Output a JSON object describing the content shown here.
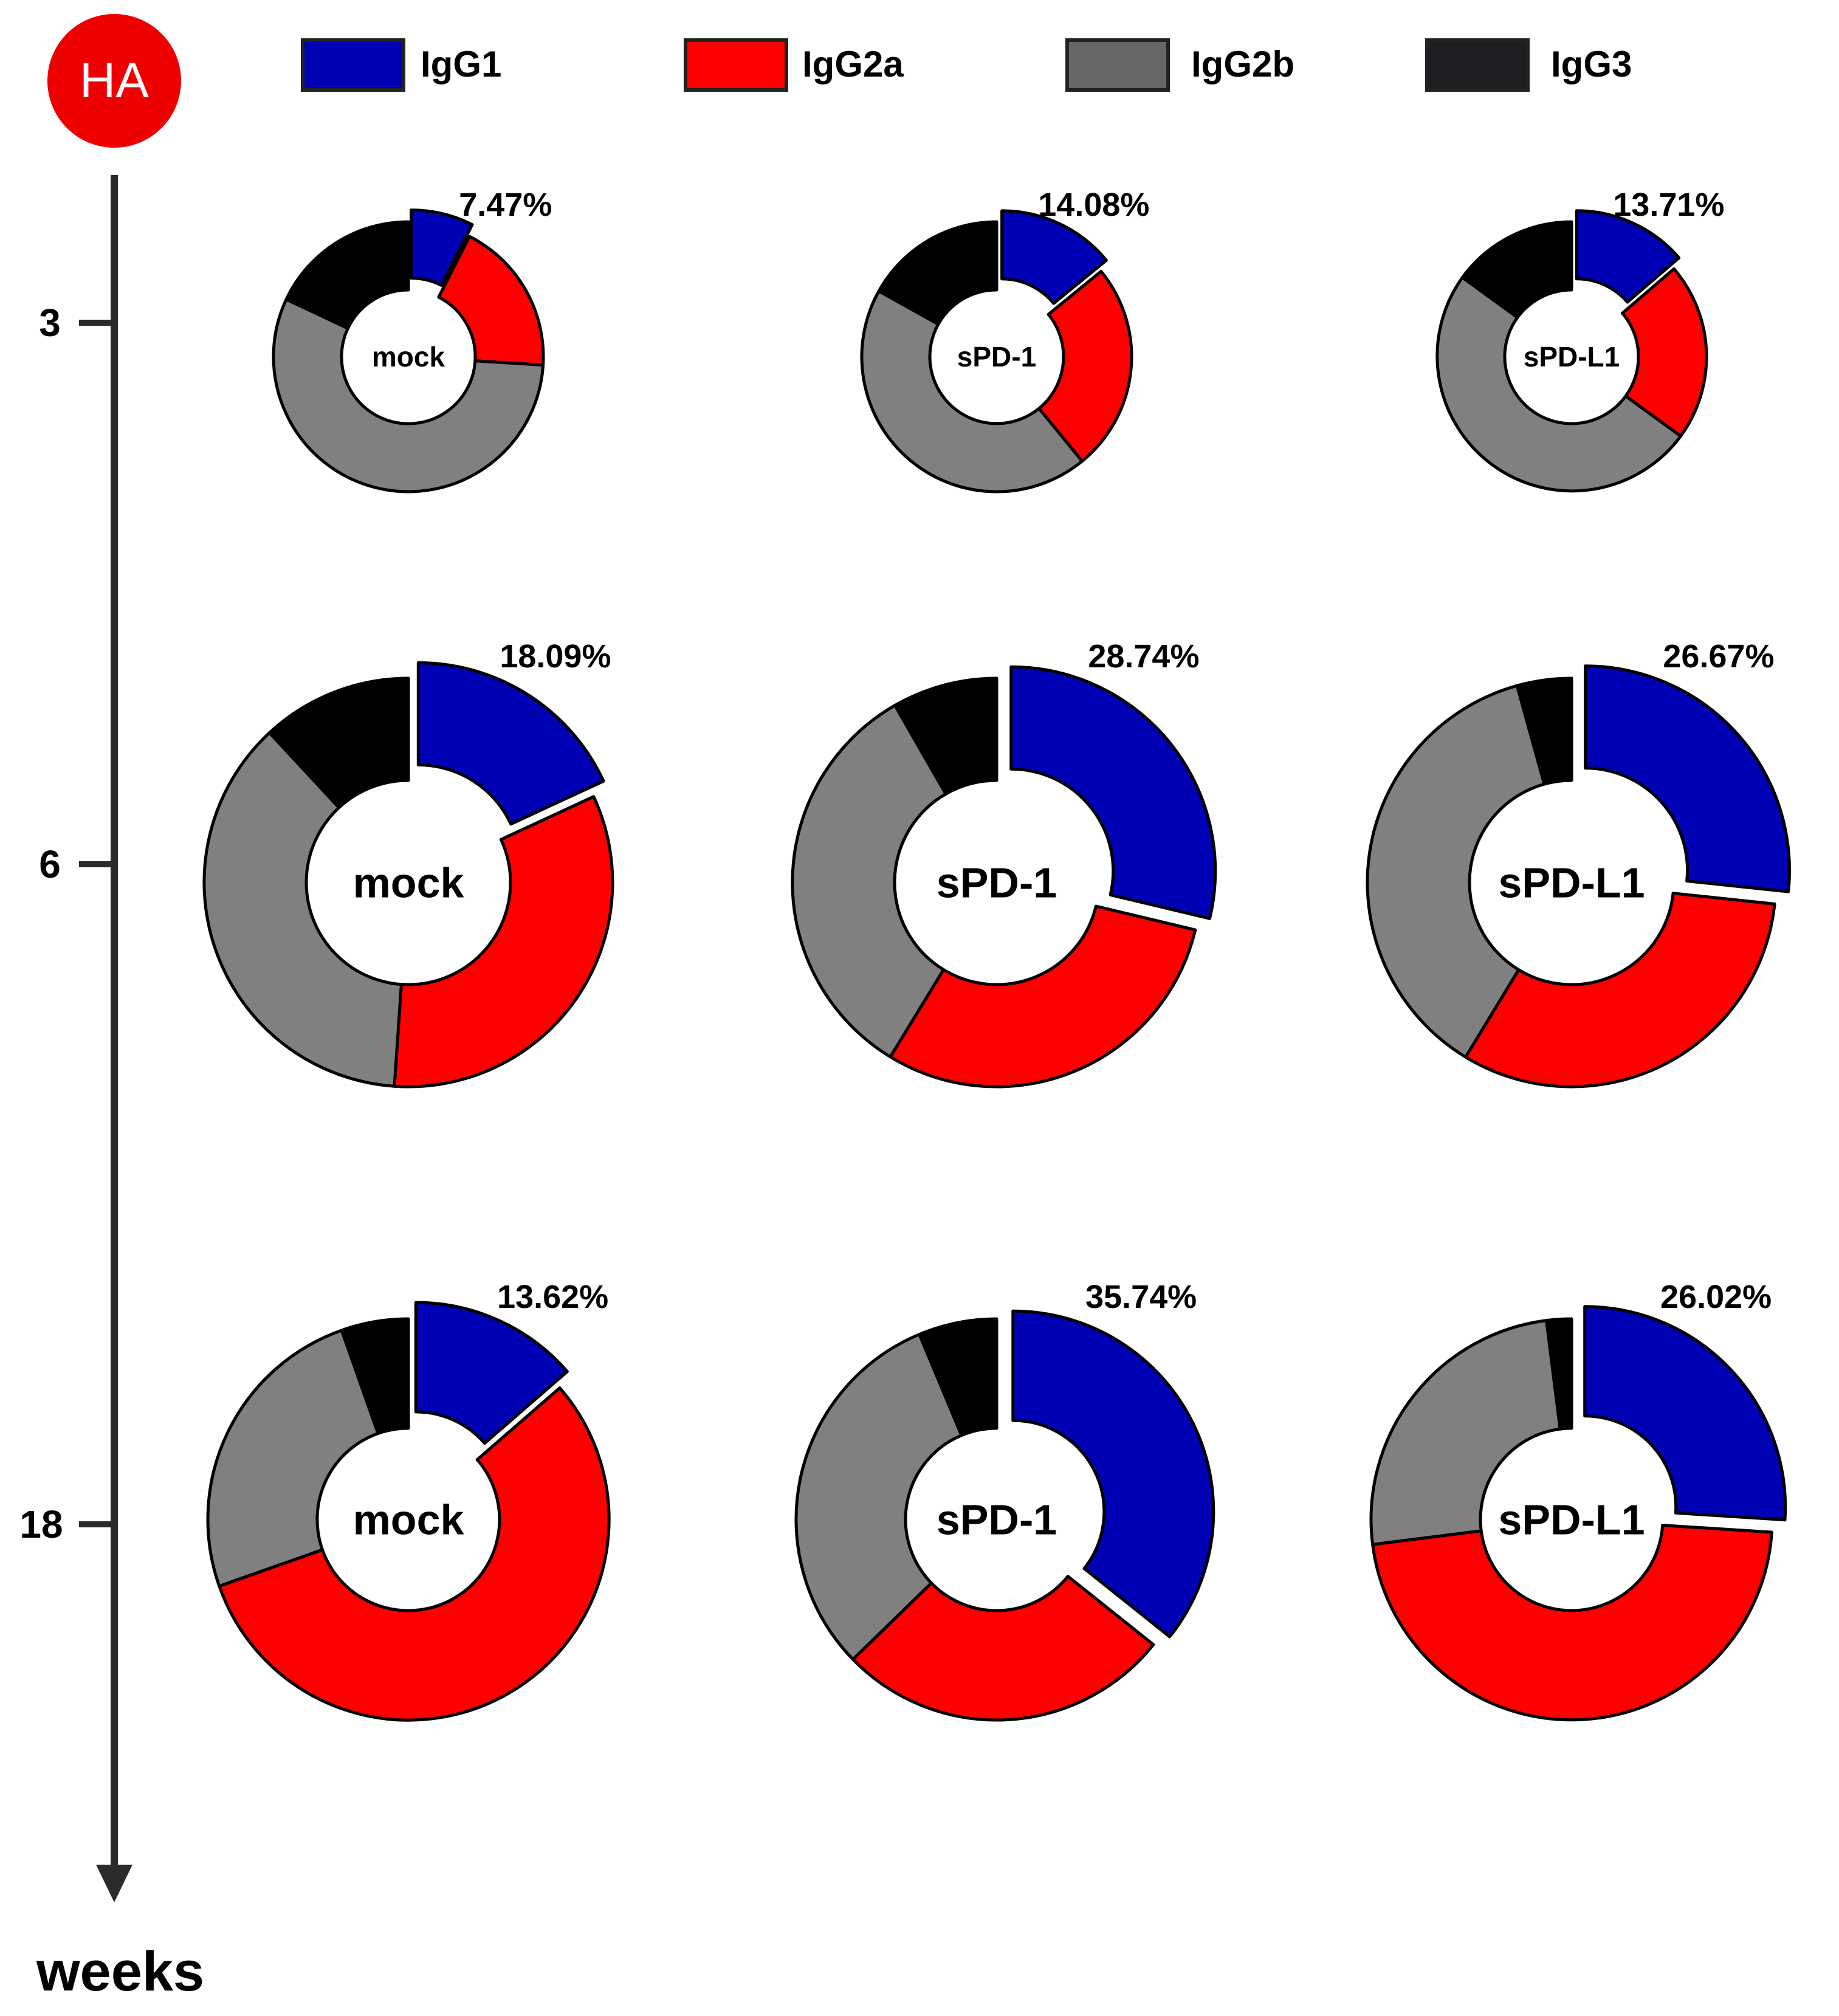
{
  "badge": {
    "label": "HA",
    "color": "#ee0000"
  },
  "legend": [
    {
      "label": "IgG1",
      "color": "#0000b4"
    },
    {
      "label": "IgG2a",
      "color": "#ff0000"
    },
    {
      "label": "IgG2b",
      "color": "#777777"
    },
    {
      "label": "IgG3",
      "color": "#1e1e22"
    }
  ],
  "axis": {
    "label": "weeks",
    "ticks": [
      "3",
      "6",
      "18"
    ]
  },
  "chart_data": {
    "type": "pie",
    "variant": "donut",
    "series_names": [
      "IgG1",
      "IgG2a",
      "IgG2b",
      "IgG3"
    ],
    "colors": {
      "IgG1": "#0000b4",
      "IgG2a": "#ff0000",
      "IgG2b": "#808080",
      "IgG3": "#000000"
    },
    "charts": [
      {
        "week": "3",
        "group": "mock",
        "label": "7.47%",
        "values": {
          "IgG1": 7.47,
          "IgG2a": 18.5,
          "IgG2b": 56.0,
          "IgG3": 18.0
        }
      },
      {
        "week": "3",
        "group": "sPD-1",
        "label": "14.08%",
        "values": {
          "IgG1": 14.08,
          "IgG2a": 25.0,
          "IgG2b": 44.0,
          "IgG3": 16.9
        }
      },
      {
        "week": "3",
        "group": "sPD-L1",
        "label": "13.71%",
        "values": {
          "IgG1": 13.71,
          "IgG2a": 21.3,
          "IgG2b": 50.0,
          "IgG3": 15.0
        }
      },
      {
        "week": "6",
        "group": "mock",
        "label": "18.09%",
        "values": {
          "IgG1": 18.09,
          "IgG2a": 33.0,
          "IgG2b": 37.0,
          "IgG3": 11.9
        }
      },
      {
        "week": "6",
        "group": "sPD-1",
        "label": "28.74%",
        "values": {
          "IgG1": 28.74,
          "IgG2a": 30.0,
          "IgG2b": 33.0,
          "IgG3": 8.3
        }
      },
      {
        "week": "6",
        "group": "sPD-L1",
        "label": "26.67%",
        "values": {
          "IgG1": 26.67,
          "IgG2a": 32.0,
          "IgG2b": 37.0,
          "IgG3": 4.3
        }
      },
      {
        "week": "18",
        "group": "mock",
        "label": "13.62%",
        "values": {
          "IgG1": 13.62,
          "IgG2a": 56.0,
          "IgG2b": 25.0,
          "IgG3": 5.4
        }
      },
      {
        "week": "18",
        "group": "sPD-1",
        "label": "35.74%",
        "values": {
          "IgG1": 35.74,
          "IgG2a": 27.0,
          "IgG2b": 31.0,
          "IgG3": 6.3
        }
      },
      {
        "week": "18",
        "group": "sPD-L1",
        "label": "26.02%",
        "values": {
          "IgG1": 26.02,
          "IgG2a": 47.0,
          "IgG2b": 25.0,
          "IgG3": 2.0
        }
      }
    ]
  }
}
